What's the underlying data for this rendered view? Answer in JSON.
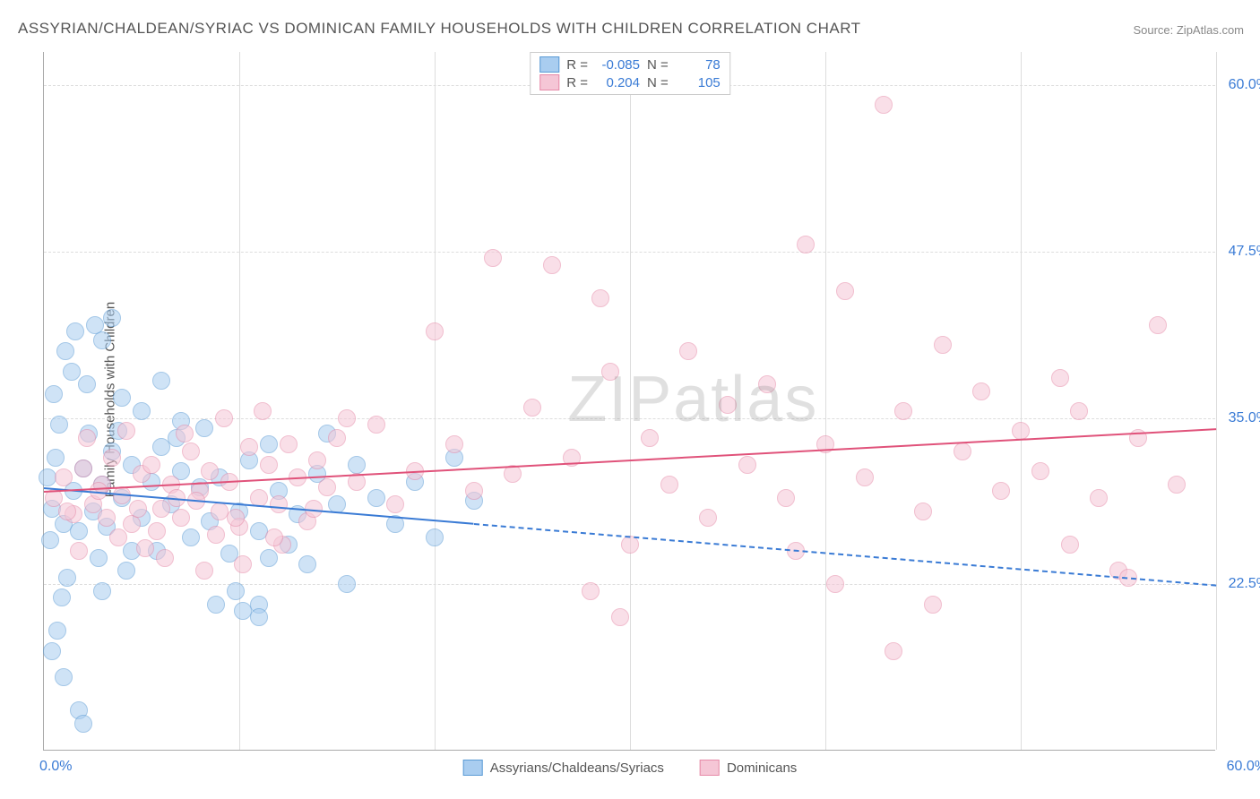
{
  "title": "ASSYRIAN/CHALDEAN/SYRIAC VS DOMINICAN FAMILY HOUSEHOLDS WITH CHILDREN CORRELATION CHART",
  "source": "Source: ZipAtlas.com",
  "ylabel": "Family Households with Children",
  "watermark": "ZIPatlas",
  "chart": {
    "type": "scatter",
    "xlim": [
      0,
      60
    ],
    "ylim": [
      10,
      62.5
    ],
    "x_tick_min_label": "0.0%",
    "x_tick_max_label": "60.0%",
    "y_ticks": [
      {
        "value": 22.5,
        "label": "22.5%"
      },
      {
        "value": 35.0,
        "label": "35.0%"
      },
      {
        "value": 47.5,
        "label": "47.5%"
      },
      {
        "value": 60.0,
        "label": "60.0%"
      }
    ],
    "x_grid_positions": [
      10,
      20,
      30,
      40,
      50,
      60
    ],
    "background_color": "#ffffff",
    "grid_color": "#dddddd",
    "axis_color": "#aaaaaa",
    "marker_radius": 10,
    "marker_opacity": 0.55,
    "series": [
      {
        "name": "Assyrians/Chaldeans/Syriacs",
        "color_fill": "#a9cdf0",
        "color_stroke": "#5b9bd5",
        "R": "-0.085",
        "N": "78",
        "regression": {
          "start": {
            "x": 0,
            "y": 29.8
          },
          "end": {
            "x": 60,
            "y": 22.5
          },
          "color": "#3a7bd5",
          "solid_until_x": 22,
          "dashed_after": true
        },
        "points": [
          {
            "x": 0.2,
            "y": 30.5
          },
          {
            "x": 0.4,
            "y": 28.2
          },
          {
            "x": 0.3,
            "y": 25.8
          },
          {
            "x": 0.6,
            "y": 32.0
          },
          {
            "x": 1.0,
            "y": 27.0
          },
          {
            "x": 0.8,
            "y": 34.5
          },
          {
            "x": 1.2,
            "y": 23.0
          },
          {
            "x": 0.5,
            "y": 36.8
          },
          {
            "x": 1.5,
            "y": 29.5
          },
          {
            "x": 2.0,
            "y": 31.2
          },
          {
            "x": 1.8,
            "y": 26.5
          },
          {
            "x": 2.3,
            "y": 33.8
          },
          {
            "x": 0.9,
            "y": 21.5
          },
          {
            "x": 1.4,
            "y": 38.5
          },
          {
            "x": 2.5,
            "y": 28.0
          },
          {
            "x": 3.0,
            "y": 30.0
          },
          {
            "x": 2.8,
            "y": 24.5
          },
          {
            "x": 3.5,
            "y": 32.5
          },
          {
            "x": 1.1,
            "y": 40.0
          },
          {
            "x": 3.2,
            "y": 26.8
          },
          {
            "x": 4.0,
            "y": 29.0
          },
          {
            "x": 4.5,
            "y": 31.5
          },
          {
            "x": 0.7,
            "y": 19.0
          },
          {
            "x": 3.8,
            "y": 34.0
          },
          {
            "x": 5.0,
            "y": 27.5
          },
          {
            "x": 5.5,
            "y": 30.2
          },
          {
            "x": 4.2,
            "y": 23.5
          },
          {
            "x": 6.0,
            "y": 32.8
          },
          {
            "x": 1.6,
            "y": 41.5
          },
          {
            "x": 5.8,
            "y": 25.0
          },
          {
            "x": 6.5,
            "y": 28.5
          },
          {
            "x": 7.0,
            "y": 31.0
          },
          {
            "x": 2.2,
            "y": 37.5
          },
          {
            "x": 7.5,
            "y": 26.0
          },
          {
            "x": 8.0,
            "y": 29.8
          },
          {
            "x": 6.8,
            "y": 33.5
          },
          {
            "x": 0.4,
            "y": 17.5
          },
          {
            "x": 8.5,
            "y": 27.2
          },
          {
            "x": 9.0,
            "y": 30.5
          },
          {
            "x": 3.0,
            "y": 40.8
          },
          {
            "x": 9.5,
            "y": 24.8
          },
          {
            "x": 10.0,
            "y": 28.0
          },
          {
            "x": 8.2,
            "y": 34.2
          },
          {
            "x": 10.5,
            "y": 31.8
          },
          {
            "x": 1.0,
            "y": 15.5
          },
          {
            "x": 11.0,
            "y": 26.5
          },
          {
            "x": 2.6,
            "y": 42.0
          },
          {
            "x": 9.8,
            "y": 22.0
          },
          {
            "x": 12.0,
            "y": 29.5
          },
          {
            "x": 11.5,
            "y": 33.0
          },
          {
            "x": 8.8,
            "y": 21.0
          },
          {
            "x": 13.0,
            "y": 27.8
          },
          {
            "x": 1.8,
            "y": 13.0
          },
          {
            "x": 10.2,
            "y": 20.5
          },
          {
            "x": 14.0,
            "y": 30.8
          },
          {
            "x": 3.5,
            "y": 42.5
          },
          {
            "x": 12.5,
            "y": 25.5
          },
          {
            "x": 15.0,
            "y": 28.5
          },
          {
            "x": 11.0,
            "y": 21.0
          },
          {
            "x": 16.0,
            "y": 31.5
          },
          {
            "x": 4.0,
            "y": 36.5
          },
          {
            "x": 13.5,
            "y": 24.0
          },
          {
            "x": 17.0,
            "y": 29.0
          },
          {
            "x": 2.0,
            "y": 12.0
          },
          {
            "x": 18.0,
            "y": 27.0
          },
          {
            "x": 14.5,
            "y": 33.8
          },
          {
            "x": 19.0,
            "y": 30.2
          },
          {
            "x": 5.0,
            "y": 35.5
          },
          {
            "x": 20.0,
            "y": 26.0
          },
          {
            "x": 21.0,
            "y": 32.0
          },
          {
            "x": 15.5,
            "y": 22.5
          },
          {
            "x": 22.0,
            "y": 28.8
          },
          {
            "x": 6.0,
            "y": 37.8
          },
          {
            "x": 11.5,
            "y": 24.5
          },
          {
            "x": 11.0,
            "y": 20.0
          },
          {
            "x": 7.0,
            "y": 34.8
          },
          {
            "x": 4.5,
            "y": 25.0
          },
          {
            "x": 3.0,
            "y": 22.0
          }
        ]
      },
      {
        "name": "Dominicans",
        "color_fill": "#f5c6d6",
        "color_stroke": "#e68aa8",
        "R": "0.204",
        "N": "105",
        "regression": {
          "start": {
            "x": 0,
            "y": 29.5
          },
          "end": {
            "x": 60,
            "y": 34.2
          },
          "color": "#e0527a",
          "solid_until_x": 60,
          "dashed_after": false
        },
        "points": [
          {
            "x": 0.5,
            "y": 29.0
          },
          {
            "x": 1.0,
            "y": 30.5
          },
          {
            "x": 1.5,
            "y": 27.8
          },
          {
            "x": 2.0,
            "y": 31.2
          },
          {
            "x": 2.5,
            "y": 28.5
          },
          {
            "x": 3.0,
            "y": 30.0
          },
          {
            "x": 1.8,
            "y": 25.0
          },
          {
            "x": 3.5,
            "y": 32.0
          },
          {
            "x": 4.0,
            "y": 29.2
          },
          {
            "x": 2.2,
            "y": 33.5
          },
          {
            "x": 4.5,
            "y": 27.0
          },
          {
            "x": 5.0,
            "y": 30.8
          },
          {
            "x": 3.8,
            "y": 26.0
          },
          {
            "x": 5.5,
            "y": 31.5
          },
          {
            "x": 6.0,
            "y": 28.2
          },
          {
            "x": 4.2,
            "y": 34.0
          },
          {
            "x": 6.5,
            "y": 30.0
          },
          {
            "x": 7.0,
            "y": 27.5
          },
          {
            "x": 5.2,
            "y": 25.2
          },
          {
            "x": 7.5,
            "y": 32.5
          },
          {
            "x": 8.0,
            "y": 29.5
          },
          {
            "x": 6.2,
            "y": 24.5
          },
          {
            "x": 8.5,
            "y": 31.0
          },
          {
            "x": 9.0,
            "y": 28.0
          },
          {
            "x": 7.2,
            "y": 33.8
          },
          {
            "x": 9.5,
            "y": 30.2
          },
          {
            "x": 10.0,
            "y": 26.8
          },
          {
            "x": 8.2,
            "y": 23.5
          },
          {
            "x": 10.5,
            "y": 32.8
          },
          {
            "x": 11.0,
            "y": 29.0
          },
          {
            "x": 9.2,
            "y": 35.0
          },
          {
            "x": 11.5,
            "y": 31.5
          },
          {
            "x": 12.0,
            "y": 28.5
          },
          {
            "x": 10.2,
            "y": 24.0
          },
          {
            "x": 12.5,
            "y": 33.0
          },
          {
            "x": 13.0,
            "y": 30.5
          },
          {
            "x": 11.2,
            "y": 35.5
          },
          {
            "x": 13.5,
            "y": 27.2
          },
          {
            "x": 14.0,
            "y": 31.8
          },
          {
            "x": 12.2,
            "y": 25.5
          },
          {
            "x": 14.5,
            "y": 29.8
          },
          {
            "x": 15.0,
            "y": 33.5
          },
          {
            "x": 15.5,
            "y": 35.0
          },
          {
            "x": 16.0,
            "y": 30.2
          },
          {
            "x": 18.0,
            "y": 28.5
          },
          {
            "x": 17.0,
            "y": 34.5
          },
          {
            "x": 19.0,
            "y": 31.0
          },
          {
            "x": 20.0,
            "y": 41.5
          },
          {
            "x": 22.0,
            "y": 29.5
          },
          {
            "x": 21.0,
            "y": 33.0
          },
          {
            "x": 23.0,
            "y": 47.0
          },
          {
            "x": 24.0,
            "y": 30.8
          },
          {
            "x": 25.0,
            "y": 35.8
          },
          {
            "x": 26.0,
            "y": 46.5
          },
          {
            "x": 27.0,
            "y": 32.0
          },
          {
            "x": 28.0,
            "y": 22.0
          },
          {
            "x": 29.0,
            "y": 38.5
          },
          {
            "x": 30.0,
            "y": 25.5
          },
          {
            "x": 28.5,
            "y": 44.0
          },
          {
            "x": 31.0,
            "y": 33.5
          },
          {
            "x": 32.0,
            "y": 30.0
          },
          {
            "x": 33.0,
            "y": 40.0
          },
          {
            "x": 34.0,
            "y": 27.5
          },
          {
            "x": 35.0,
            "y": 36.0
          },
          {
            "x": 29.5,
            "y": 20.0
          },
          {
            "x": 36.0,
            "y": 31.5
          },
          {
            "x": 37.0,
            "y": 37.5
          },
          {
            "x": 38.0,
            "y": 29.0
          },
          {
            "x": 39.0,
            "y": 48.0
          },
          {
            "x": 40.0,
            "y": 33.0
          },
          {
            "x": 41.0,
            "y": 44.5
          },
          {
            "x": 38.5,
            "y": 25.0
          },
          {
            "x": 42.0,
            "y": 30.5
          },
          {
            "x": 43.0,
            "y": 58.5
          },
          {
            "x": 44.0,
            "y": 35.5
          },
          {
            "x": 40.5,
            "y": 22.5
          },
          {
            "x": 45.0,
            "y": 28.0
          },
          {
            "x": 46.0,
            "y": 40.5
          },
          {
            "x": 43.5,
            "y": 17.5
          },
          {
            "x": 47.0,
            "y": 32.5
          },
          {
            "x": 48.0,
            "y": 37.0
          },
          {
            "x": 49.0,
            "y": 29.5
          },
          {
            "x": 45.5,
            "y": 21.0
          },
          {
            "x": 50.0,
            "y": 34.0
          },
          {
            "x": 51.0,
            "y": 31.0
          },
          {
            "x": 52.0,
            "y": 38.0
          },
          {
            "x": 53.0,
            "y": 35.5
          },
          {
            "x": 54.0,
            "y": 29.0
          },
          {
            "x": 55.0,
            "y": 23.5
          },
          {
            "x": 55.5,
            "y": 23.0
          },
          {
            "x": 56.0,
            "y": 33.5
          },
          {
            "x": 57.0,
            "y": 42.0
          },
          {
            "x": 58.0,
            "y": 30.0
          },
          {
            "x": 52.5,
            "y": 25.5
          },
          {
            "x": 1.2,
            "y": 28.0
          },
          {
            "x": 2.8,
            "y": 29.5
          },
          {
            "x": 4.8,
            "y": 28.2
          },
          {
            "x": 6.8,
            "y": 29.0
          },
          {
            "x": 3.2,
            "y": 27.5
          },
          {
            "x": 5.8,
            "y": 26.5
          },
          {
            "x": 7.8,
            "y": 28.8
          },
          {
            "x": 9.8,
            "y": 27.5
          },
          {
            "x": 11.8,
            "y": 26.0
          },
          {
            "x": 13.8,
            "y": 28.2
          },
          {
            "x": 8.8,
            "y": 26.2
          }
        ]
      }
    ]
  },
  "legend_bottom": {
    "series1_label": "Assyrians/Chaldeans/Syriacs",
    "series2_label": "Dominicans"
  },
  "legend_top": {
    "r_label": "R =",
    "n_label": "N ="
  }
}
